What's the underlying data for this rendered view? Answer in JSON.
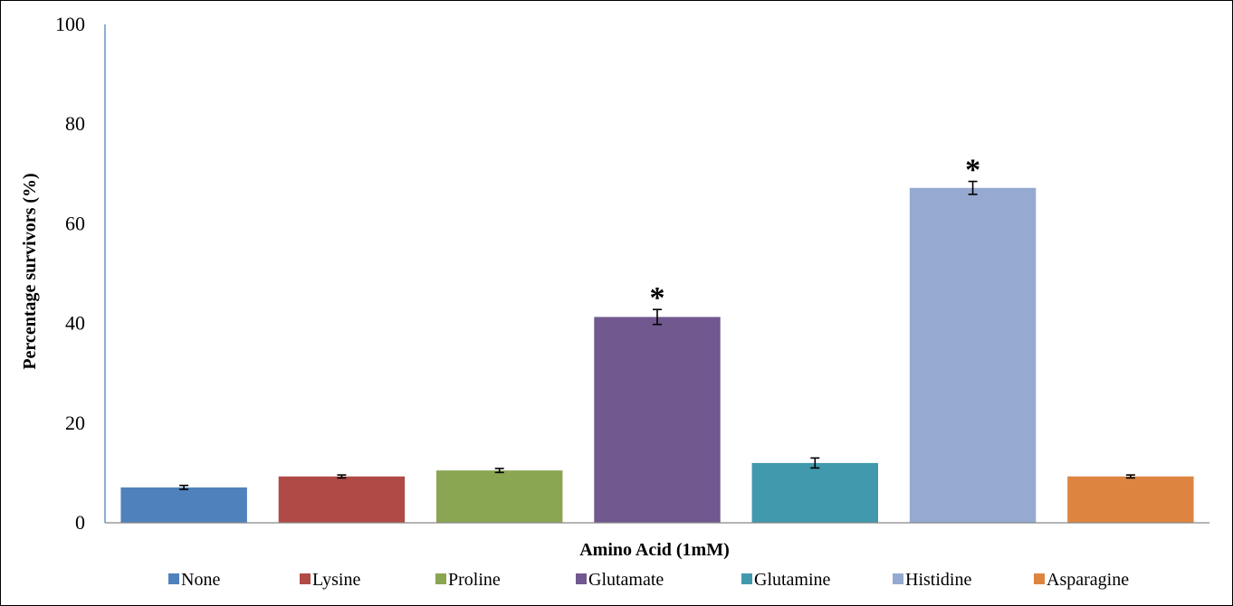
{
  "chart_data": {
    "type": "bar",
    "title": "",
    "xlabel": "Amino Acid (1mM)",
    "ylabel": "Percentage survivors (%)",
    "ylim": [
      0,
      100
    ],
    "yticks": [
      0,
      20,
      40,
      60,
      80,
      100
    ],
    "grid": false,
    "legend_position": "bottom",
    "categories": [
      "None",
      "Lysine",
      "Proline",
      "Glutamate",
      "Glutamine",
      "Histidine",
      "Asparagine"
    ],
    "values": [
      7.1,
      9.3,
      10.5,
      41.3,
      12.0,
      67.2,
      9.3
    ],
    "errors": [
      0.4,
      0.3,
      0.4,
      1.5,
      1.0,
      1.3,
      0.3
    ],
    "significance": [
      "",
      "",
      "",
      "*",
      "",
      "*",
      ""
    ],
    "colors": [
      "#4F81BD",
      "#B04A46",
      "#8AA653",
      "#71588F",
      "#4199AD",
      "#95A9D1",
      "#DD8540"
    ]
  }
}
